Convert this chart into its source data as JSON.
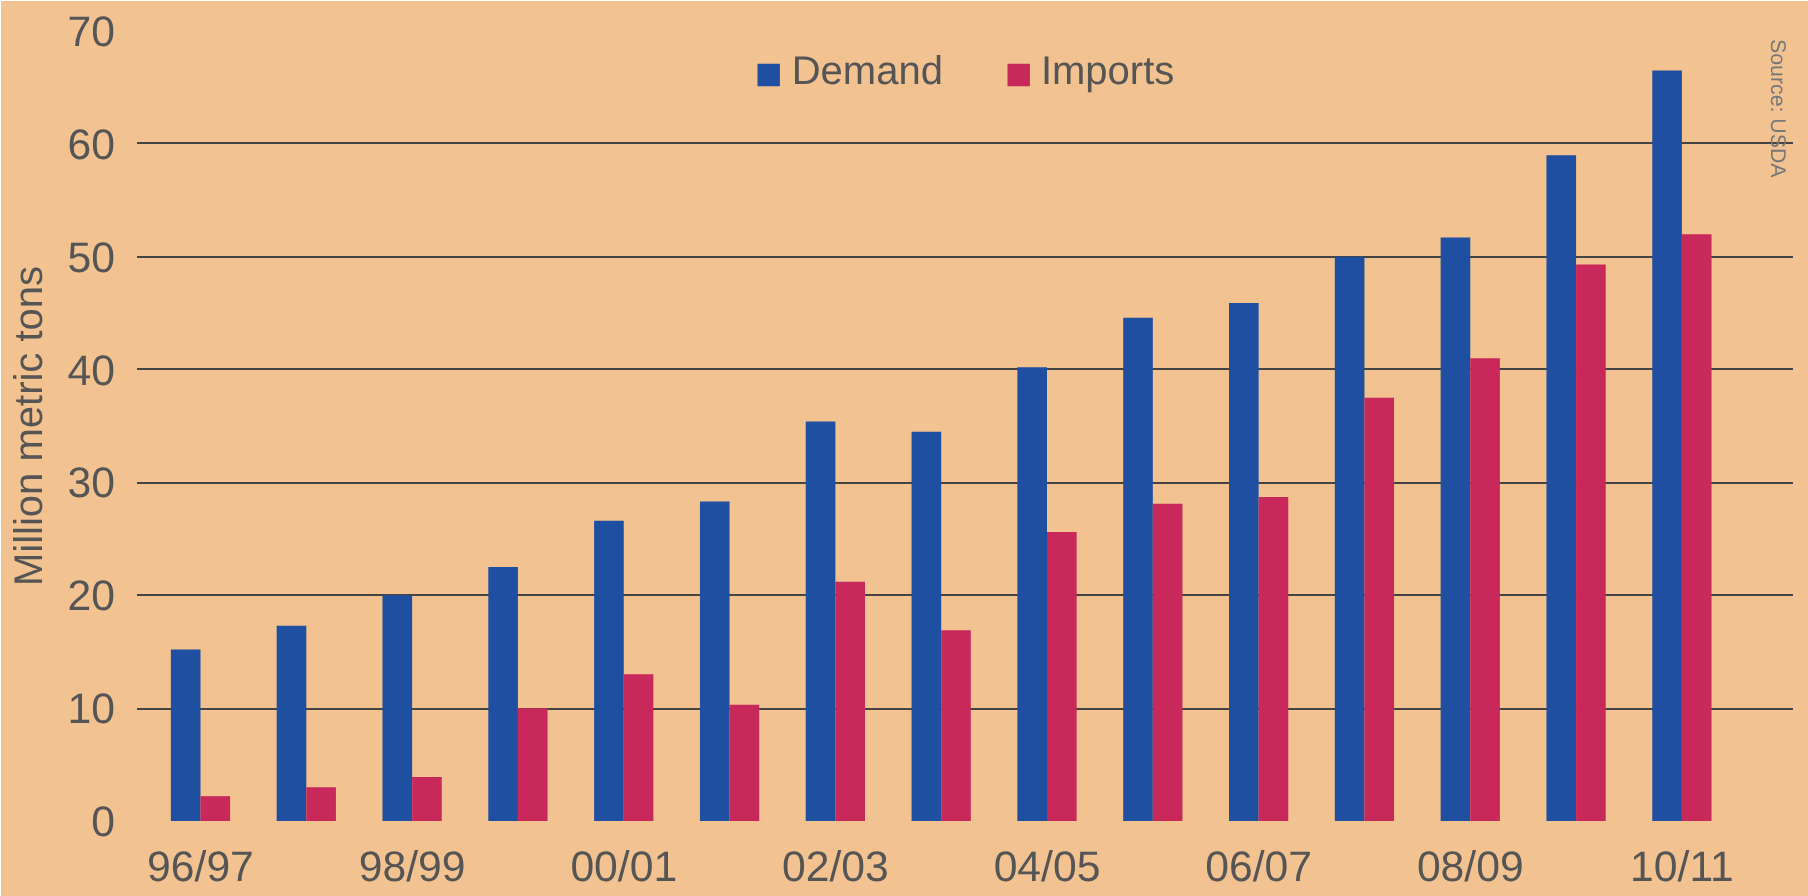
{
  "chart_data": {
    "type": "bar",
    "ylabel": "Million metric tons",
    "categories": [
      "96/97",
      null,
      "98/99",
      null,
      "00/01",
      null,
      "02/03",
      null,
      "04/05",
      null,
      "06/07",
      null,
      "08/09",
      null,
      "10/11"
    ],
    "series": [
      {
        "name": "Demand",
        "color": "#1f4fa0",
        "values": [
          15.2,
          17.3,
          20,
          22.5,
          26.6,
          28.3,
          35.4,
          34.5,
          40.2,
          44.6,
          45.9,
          50,
          51.7,
          59,
          66.5
        ]
      },
      {
        "name": "Imports",
        "color": "#c8285a",
        "values": [
          2.2,
          3,
          3.9,
          10,
          13,
          10.3,
          21.2,
          16.9,
          25.6,
          28.1,
          28.7,
          37.5,
          41,
          49.3,
          52
        ]
      }
    ],
    "ylim": [
      0,
      70
    ],
    "yticks": [
      0,
      10,
      20,
      30,
      40,
      50,
      60,
      70
    ],
    "grid": "y",
    "legend": "top",
    "annotations": [
      "Source: USDA"
    ]
  }
}
